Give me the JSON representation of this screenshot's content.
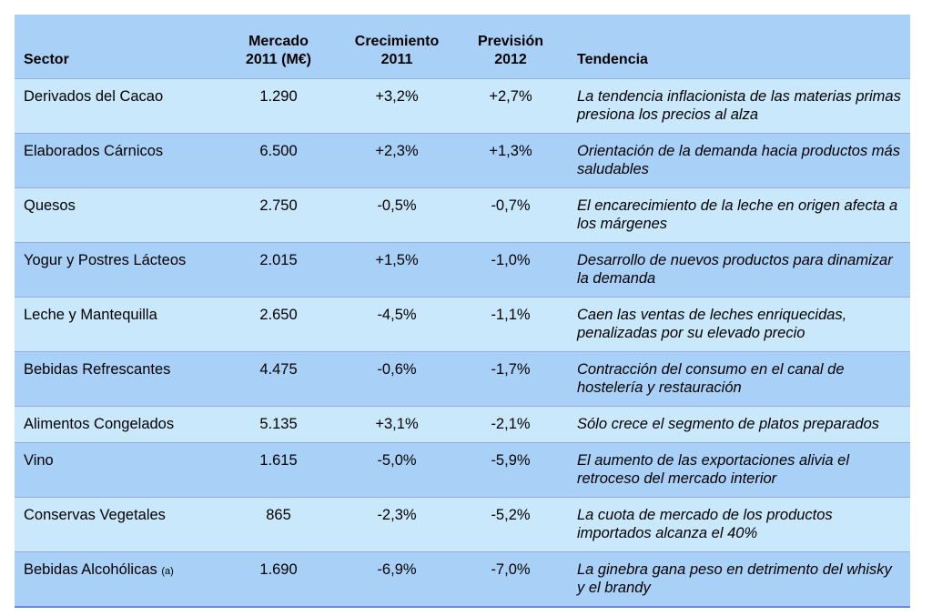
{
  "table": {
    "headers": {
      "sector": "Sector",
      "market_line1": "Mercado",
      "market_line2": "2011 (M€)",
      "growth_line1": "Crecimiento",
      "growth_line2": "2011",
      "forecast_line1": "Previsión",
      "forecast_line2": "2012",
      "trend": "Tendencia"
    },
    "rows": [
      {
        "sector": "Derivados del Cacao",
        "note": "",
        "market": "1.290",
        "growth": "+3,2%",
        "forecast": "+2,7%",
        "trend": "La tendencia inflacionista de las materias primas presiona los precios al alza"
      },
      {
        "sector": "Elaborados Cárnicos",
        "note": "",
        "market": "6.500",
        "growth": "+2,3%",
        "forecast": "+1,3%",
        "trend": "Orientación de la demanda hacia productos más saludables"
      },
      {
        "sector": "Quesos",
        "note": "",
        "market": "2.750",
        "growth": "-0,5%",
        "forecast": "-0,7%",
        "trend": "El encarecimiento de la leche en origen afecta a los márgenes"
      },
      {
        "sector": "Yogur y Postres Lácteos",
        "note": "",
        "market": "2.015",
        "growth": "+1,5%",
        "forecast": "-1,0%",
        "trend": "Desarrollo de nuevos productos para dinamizar la demanda"
      },
      {
        "sector": "Leche y Mantequilla",
        "note": "",
        "market": "2.650",
        "growth": "-4,5%",
        "forecast": "-1,1%",
        "trend": "Caen las ventas de leches enriquecidas, penalizadas por su elevado precio"
      },
      {
        "sector": "Bebidas Refrescantes",
        "note": "",
        "market": "4.475",
        "growth": "-0,6%",
        "forecast": "-1,7%",
        "trend": "Contracción del consumo en el canal de hostelería y restauración"
      },
      {
        "sector": "Alimentos Congelados",
        "note": "",
        "market": "5.135",
        "growth": "+3,1%",
        "forecast": "-2,1%",
        "trend": "Sólo crece el segmento de platos preparados"
      },
      {
        "sector": "Vino",
        "note": "",
        "market": "1.615",
        "growth": "-5,0%",
        "forecast": "-5,9%",
        "trend": "El aumento de las exportaciones alivia el retroceso del mercado interior"
      },
      {
        "sector": "Conservas Vegetales",
        "note": "",
        "market": "865",
        "growth": "-2,3%",
        "forecast": "-5,2%",
        "trend": "La cuota de mercado de los productos importados alcanza el 40%"
      },
      {
        "sector": "Bebidas Alcohólicas",
        "note": "(a)",
        "market": "1.690",
        "growth": "-6,9%",
        "forecast": "-7,0%",
        "trend": "La ginebra gana peso en detrimento del whisky y el brandy"
      }
    ]
  },
  "colors": {
    "row_light": "#c9e8fc",
    "row_dark": "#a9d1f7",
    "row_separator": "#9fa8e6"
  }
}
